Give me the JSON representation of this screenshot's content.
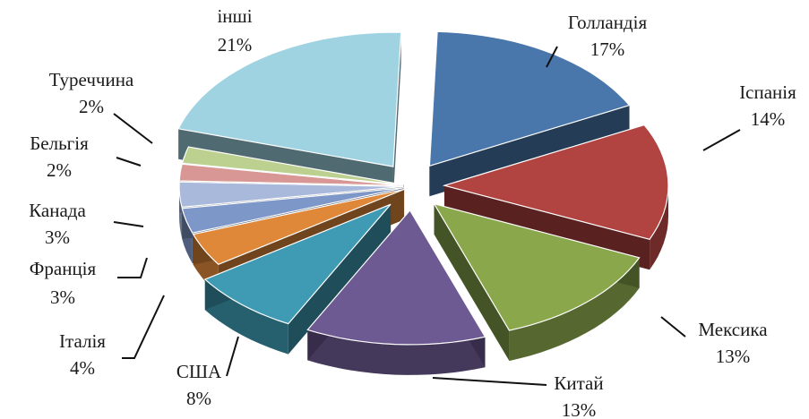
{
  "chart_data": {
    "type": "pie",
    "title": "",
    "exploded": true,
    "three_d": true,
    "slices": [
      {
        "label": "Голландія",
        "value": 17,
        "value_label": "17%",
        "color": "#4a77ab"
      },
      {
        "label": "Іспанія",
        "value": 14,
        "value_label": "14%",
        "color": "#b14340"
      },
      {
        "label": "Мексика",
        "value": 13,
        "value_label": "13%",
        "color": "#8aa74b"
      },
      {
        "label": "Китай",
        "value": 13,
        "value_label": "13%",
        "color": "#6e5a93"
      },
      {
        "label": "США",
        "value": 8,
        "value_label": "8%",
        "color": "#3e9bb3"
      },
      {
        "label": "Італія",
        "value": 4,
        "value_label": "4%",
        "color": "#e0883a"
      },
      {
        "label": "Франція",
        "value": 3,
        "value_label": "3%",
        "color": "#7d97c8"
      },
      {
        "label": "Канада",
        "value": 3,
        "value_label": "3%",
        "color": "#a9b9dc"
      },
      {
        "label": "Бельгія",
        "value": 2,
        "value_label": "2%",
        "color": "#d89694"
      },
      {
        "label": "Туреччина",
        "value": 2,
        "value_label": "2%",
        "color": "#bcd08f"
      },
      {
        "label": "інші",
        "value": 21,
        "value_label": "21%",
        "color": "#9fd3e2"
      }
    ]
  }
}
